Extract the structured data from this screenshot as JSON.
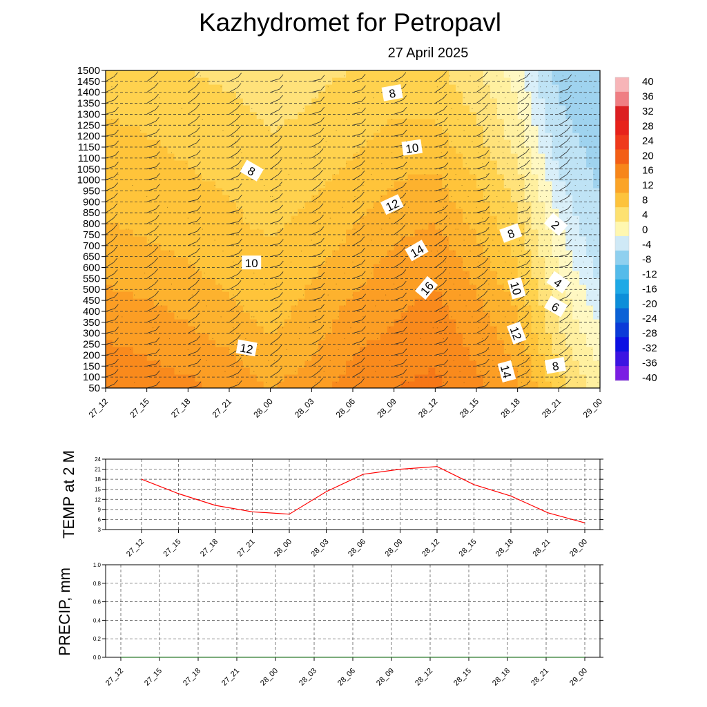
{
  "header": {
    "title": "Kazhydromet  for Petropavl",
    "date": "27 April 2025"
  },
  "time_labels": [
    "27_12",
    "27_15",
    "27_18",
    "27_21",
    "28_00",
    "28_03",
    "28_06",
    "28_09",
    "28_12",
    "28_15",
    "28_18",
    "28_21",
    "29_00"
  ],
  "chart_data": [
    {
      "type": "heatmap",
      "title": "Kazhydromet  for Petropavl",
      "subtitle": "27 April 2025",
      "x_categories": [
        "27_12",
        "27_15",
        "27_18",
        "27_21",
        "28_00",
        "28_03",
        "28_06",
        "28_09",
        "28_12",
        "28_15",
        "28_18",
        "28_21",
        "29_00"
      ],
      "y_ticks": [
        50,
        100,
        150,
        200,
        250,
        300,
        350,
        400,
        450,
        500,
        550,
        600,
        650,
        700,
        750,
        800,
        850,
        900,
        950,
        1000,
        1050,
        1100,
        1150,
        1200,
        1250,
        1300,
        1350,
        1400,
        1450,
        1500
      ],
      "ylim": [
        50,
        1500
      ],
      "grid": "horizontal dashed",
      "colorbar": {
        "labels": [
          "40",
          "36",
          "32",
          "28",
          "24",
          "20",
          "16",
          "12",
          "8",
          "4",
          "0",
          "-4",
          "-8",
          "-12",
          "-16",
          "-20",
          "-24",
          "-28",
          "-32",
          "-36",
          "-40"
        ],
        "values": [
          40,
          36,
          32,
          28,
          24,
          20,
          16,
          12,
          8,
          4,
          0,
          -4,
          -8,
          -12,
          -16,
          -20,
          -24,
          -28,
          -32,
          -36,
          -40
        ],
        "colors": [
          "#f7b5b8",
          "#ef7e83",
          "#dc1f22",
          "#e7221b",
          "#ef3a1c",
          "#f35f16",
          "#f7861a",
          "#fba428",
          "#fdc33c",
          "#fde171",
          "#fff7b0",
          "#cfe9f6",
          "#8fd0ef",
          "#54bbea",
          "#1ea9e6",
          "#0d8ed9",
          "#0b62d6",
          "#0b3bd8",
          "#0c10e3",
          "#3c14e2",
          "#7b1ee3"
        ],
        "legend_position": "right"
      },
      "contour_labels": [
        "8",
        "10",
        "8",
        "12",
        "10",
        "14",
        "12",
        "16",
        "8",
        "2",
        "10",
        "4",
        "6",
        "12",
        "14",
        "8"
      ],
      "grid_values_celsius": [
        [
          17.5,
          15.5,
          13.0,
          11.5,
          10.5,
          8.5
        ],
        [
          17.0,
          15.0,
          12.5,
          11.0,
          10.0,
          8.5
        ],
        [
          16.5,
          14.0,
          12.0,
          10.5,
          9.5,
          8.0
        ],
        [
          15.5,
          13.0,
          11.0,
          10.0,
          9.0,
          7.5
        ],
        [
          14.0,
          11.5,
          10.5,
          9.0,
          8.0,
          7.0
        ],
        [
          15.0,
          13.0,
          11.5,
          10.0,
          8.5,
          7.5
        ],
        [
          17.0,
          15.0,
          13.0,
          11.0,
          9.5,
          8.0
        ],
        [
          18.0,
          16.0,
          14.5,
          12.5,
          10.5,
          8.5
        ],
        [
          18.5,
          17.0,
          15.5,
          13.0,
          10.5,
          8.5
        ],
        [
          16.5,
          15.0,
          13.0,
          10.5,
          8.5,
          6.5
        ],
        [
          14.5,
          12.5,
          10.0,
          7.5,
          5.0,
          3.0
        ],
        [
          9.0,
          6.0,
          3.5,
          1.0,
          -1.5,
          -4.0
        ],
        [
          5.0,
          2.0,
          -1.0,
          -3.0,
          -5.0,
          -7.0
        ]
      ],
      "grid_levels": [
        50,
        340,
        630,
        920,
        1210,
        1500
      ]
    },
    {
      "type": "line",
      "ylabel": "TEMP at 2 M",
      "x_categories": [
        "27_12",
        "27_15",
        "27_18",
        "27_21",
        "28_00",
        "28_03",
        "28_06",
        "28_09",
        "28_12",
        "28_15",
        "28_18",
        "28_21",
        "29_00"
      ],
      "y_ticks": [
        3,
        6,
        9,
        12,
        15,
        18,
        21,
        24
      ],
      "ylim": [
        3,
        24
      ],
      "grid": true,
      "series": [
        {
          "values": [
            18,
            13.7,
            10.2,
            8.3,
            7.6,
            14.3,
            19.5,
            21,
            21.8,
            16.4,
            13,
            8,
            5
          ],
          "color": "#ff0000"
        }
      ]
    },
    {
      "type": "line",
      "ylabel": "PRECIP, mm",
      "x_categories": [
        "27_12",
        "27_15",
        "27_18",
        "27_21",
        "28_00",
        "28_03",
        "28_06",
        "28_09",
        "28_12",
        "28_15",
        "28_18",
        "28_21",
        "29_00"
      ],
      "y_ticks": [
        "0.0",
        "0.2",
        "0.4",
        "0.6",
        "0.8",
        "1.0"
      ],
      "ylim": [
        0,
        1
      ],
      "grid": true,
      "series": [
        {
          "values": [
            0,
            0,
            0,
            0,
            0,
            0,
            0,
            0,
            0,
            0,
            0,
            0,
            0
          ],
          "color": "#2a7a2a"
        }
      ]
    }
  ]
}
